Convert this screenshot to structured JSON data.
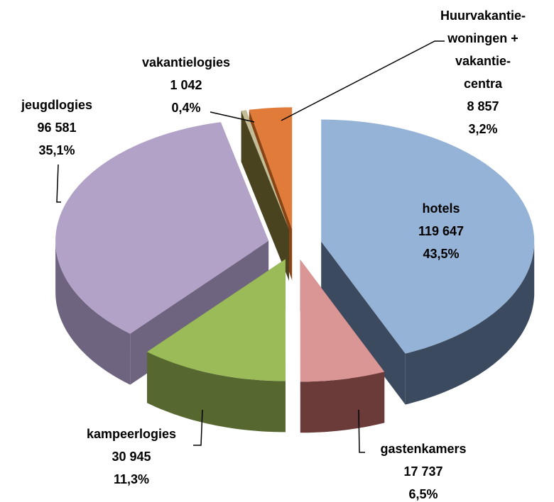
{
  "chart_data": {
    "type": "pie3d",
    "categories": [
      "hotels",
      "gastenkamers",
      "kampeerlogies",
      "jeugdlogies",
      "vakantielogies",
      "Huurvakantie-\nwoningen +\nvakantie-\ncentra"
    ],
    "values": [
      119647,
      17737,
      30945,
      96581,
      1042,
      8857
    ],
    "value_labels": [
      "119 647",
      "17 737",
      "30 945",
      "96 581",
      "1 042",
      "8 857"
    ],
    "percent": [
      43.5,
      6.5,
      11.3,
      35.1,
      0.4,
      3.2
    ],
    "percent_labels": [
      "43,5%",
      "6,5%",
      "11,3%",
      "35,1%",
      "0,4%",
      "3,2%"
    ],
    "colors": [
      "#95b3d7",
      "#d99694",
      "#9bbb59",
      "#b3a2c7",
      "#c4bd97",
      "#e07b39"
    ],
    "side_colors": [
      "#3b4a5e",
      "#6b3b3a",
      "#56682f",
      "#6f6480",
      "#4a4320",
      "#8a4414"
    ]
  }
}
